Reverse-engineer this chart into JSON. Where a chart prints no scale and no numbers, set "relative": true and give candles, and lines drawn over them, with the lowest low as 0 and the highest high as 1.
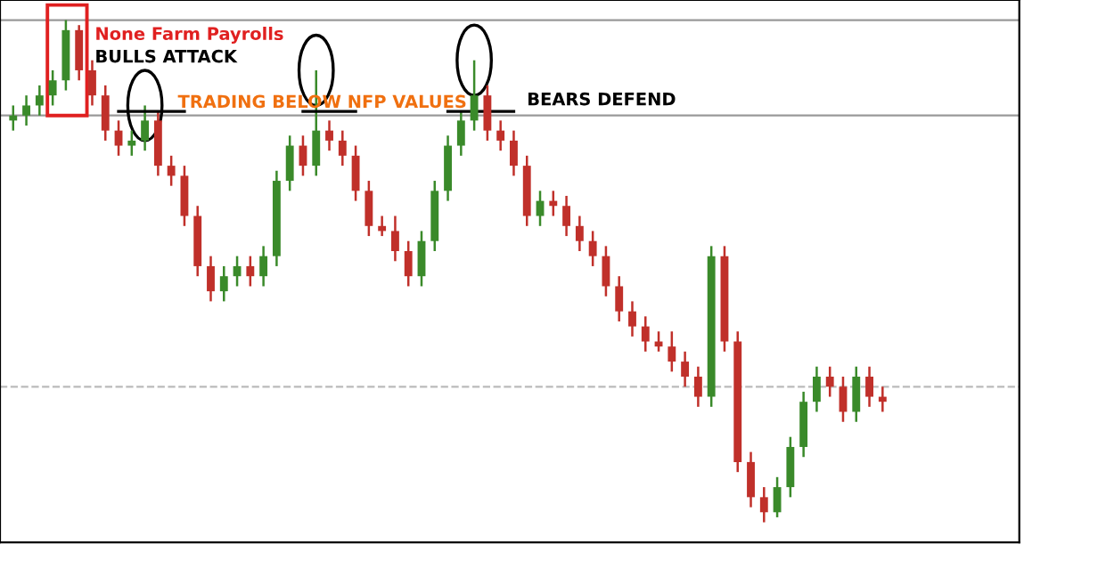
{
  "chart_data": {
    "type": "candlestick",
    "relative": true,
    "categories": [
      null,
      null,
      null,
      null,
      null,
      null,
      null,
      null,
      null,
      null,
      null,
      null,
      null,
      null,
      null,
      null,
      null,
      null,
      null,
      null,
      null,
      null,
      null,
      null,
      null,
      null,
      null,
      null,
      null,
      null,
      null,
      null,
      null,
      null,
      null,
      null,
      null,
      null,
      null,
      null,
      null,
      null,
      null,
      null,
      null,
      null,
      null,
      null,
      null,
      null,
      null,
      null,
      null,
      null,
      null,
      null,
      null,
      null,
      null,
      null,
      null,
      null,
      null,
      null,
      null,
      null,
      null
    ],
    "ohlc": [
      [
        0.8,
        0.83,
        0.78,
        0.81
      ],
      [
        0.81,
        0.85,
        0.79,
        0.83
      ],
      [
        0.83,
        0.87,
        0.81,
        0.85
      ],
      [
        0.85,
        0.9,
        0.83,
        0.88
      ],
      [
        0.88,
        1.0,
        0.86,
        0.98
      ],
      [
        0.98,
        0.99,
        0.88,
        0.9
      ],
      [
        0.9,
        0.92,
        0.83,
        0.85
      ],
      [
        0.85,
        0.87,
        0.76,
        0.78
      ],
      [
        0.78,
        0.8,
        0.73,
        0.75
      ],
      [
        0.75,
        0.78,
        0.73,
        0.76
      ],
      [
        0.76,
        0.83,
        0.74,
        0.8
      ],
      [
        0.8,
        0.82,
        0.69,
        0.71
      ],
      [
        0.71,
        0.73,
        0.67,
        0.69
      ],
      [
        0.69,
        0.71,
        0.59,
        0.61
      ],
      [
        0.61,
        0.63,
        0.49,
        0.51
      ],
      [
        0.51,
        0.53,
        0.44,
        0.46
      ],
      [
        0.46,
        0.51,
        0.44,
        0.49
      ],
      [
        0.49,
        0.53,
        0.47,
        0.51
      ],
      [
        0.51,
        0.53,
        0.47,
        0.49
      ],
      [
        0.49,
        0.55,
        0.47,
        0.53
      ],
      [
        0.53,
        0.7,
        0.51,
        0.68
      ],
      [
        0.68,
        0.77,
        0.66,
        0.75
      ],
      [
        0.75,
        0.77,
        0.69,
        0.71
      ],
      [
        0.71,
        0.9,
        0.69,
        0.78
      ],
      [
        0.78,
        0.8,
        0.74,
        0.76
      ],
      [
        0.76,
        0.78,
        0.71,
        0.73
      ],
      [
        0.73,
        0.75,
        0.64,
        0.66
      ],
      [
        0.66,
        0.68,
        0.57,
        0.59
      ],
      [
        0.59,
        0.61,
        0.57,
        0.58
      ],
      [
        0.58,
        0.61,
        0.52,
        0.54
      ],
      [
        0.54,
        0.56,
        0.47,
        0.49
      ],
      [
        0.49,
        0.58,
        0.47,
        0.56
      ],
      [
        0.56,
        0.68,
        0.54,
        0.66
      ],
      [
        0.66,
        0.77,
        0.64,
        0.75
      ],
      [
        0.75,
        0.82,
        0.73,
        0.8
      ],
      [
        0.8,
        0.92,
        0.78,
        0.85
      ],
      [
        0.85,
        0.87,
        0.76,
        0.78
      ],
      [
        0.78,
        0.8,
        0.74,
        0.76
      ],
      [
        0.76,
        0.78,
        0.69,
        0.71
      ],
      [
        0.71,
        0.73,
        0.59,
        0.61
      ],
      [
        0.61,
        0.66,
        0.59,
        0.64
      ],
      [
        0.64,
        0.66,
        0.61,
        0.63
      ],
      [
        0.63,
        0.65,
        0.57,
        0.59
      ],
      [
        0.59,
        0.61,
        0.54,
        0.56
      ],
      [
        0.56,
        0.58,
        0.51,
        0.53
      ],
      [
        0.53,
        0.55,
        0.45,
        0.47
      ],
      [
        0.47,
        0.49,
        0.4,
        0.42
      ],
      [
        0.42,
        0.44,
        0.37,
        0.39
      ],
      [
        0.39,
        0.41,
        0.34,
        0.36
      ],
      [
        0.36,
        0.38,
        0.34,
        0.35
      ],
      [
        0.35,
        0.38,
        0.3,
        0.32
      ],
      [
        0.32,
        0.34,
        0.27,
        0.29
      ],
      [
        0.29,
        0.31,
        0.23,
        0.25
      ],
      [
        0.25,
        0.55,
        0.23,
        0.53
      ],
      [
        0.53,
        0.55,
        0.34,
        0.36
      ],
      [
        0.36,
        0.38,
        0.1,
        0.12
      ],
      [
        0.12,
        0.14,
        0.03,
        0.05
      ],
      [
        0.05,
        0.07,
        0.0,
        0.02
      ],
      [
        0.02,
        0.09,
        0.01,
        0.07
      ],
      [
        0.07,
        0.17,
        0.05,
        0.15
      ],
      [
        0.15,
        0.26,
        0.13,
        0.24
      ],
      [
        0.24,
        0.31,
        0.22,
        0.29
      ],
      [
        0.29,
        0.31,
        0.25,
        0.27
      ],
      [
        0.27,
        0.29,
        0.2,
        0.22
      ],
      [
        0.22,
        0.31,
        0.2,
        0.29
      ],
      [
        0.29,
        0.31,
        0.23,
        0.25
      ],
      [
        0.25,
        0.27,
        0.22,
        0.24
      ]
    ],
    "ref_lines": [
      {
        "axis": "y",
        "value": 1.0,
        "color": "#999999",
        "line_style": "solid"
      },
      {
        "axis": "y",
        "value": 0.81,
        "color": "#999999",
        "line_style": "solid"
      },
      {
        "axis": "y",
        "value": 0.27,
        "color": "#bbbbbb",
        "line_style": "dashed"
      }
    ],
    "annotations": [
      "None Farm Payrolls",
      "BULLS ATTACK",
      "TRADING BELOW NFP VALUES",
      "BEARS DEFEND"
    ]
  }
}
